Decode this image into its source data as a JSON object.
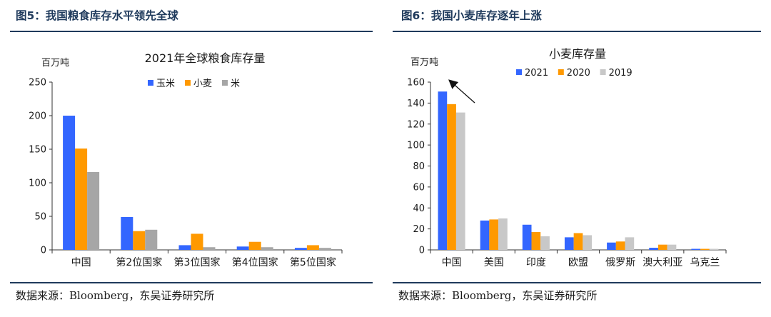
{
  "left": {
    "fig_title": "图5：我国粮食库存水平领先全球",
    "source": "数据来源：Bloomberg，东吴证券研究所",
    "chart_data": {
      "type": "bar",
      "title": "2021年全球粮食库存量",
      "ylabel": "百万吨",
      "ylim": [
        0,
        250
      ],
      "yticks": [
        "0",
        "50",
        "100",
        "150",
        "200",
        "250"
      ],
      "categories": [
        "中国",
        "第2位国家",
        "第3位国家",
        "第4位国家",
        "第5位国家"
      ],
      "series": [
        {
          "name": "玉米",
          "color": "#3366ff",
          "values": [
            200,
            49,
            7,
            5,
            3
          ]
        },
        {
          "name": "小麦",
          "color": "#ff9900",
          "values": [
            151,
            28,
            24,
            12,
            7
          ]
        },
        {
          "name": "米",
          "color": "#a6a6a6",
          "values": [
            116,
            30,
            4,
            4,
            3
          ]
        }
      ],
      "legend_position": "top-center",
      "grid": false
    }
  },
  "right": {
    "fig_title": "图6：我国小麦库存逐年上涨",
    "source": "数据来源：Bloomberg，东吴证券研究所",
    "chart_data": {
      "type": "bar",
      "title": "小麦库存量",
      "ylabel": "百万吨",
      "ylim": [
        0,
        160
      ],
      "yticks": [
        "0",
        "20",
        "40",
        "60",
        "80",
        "100",
        "120",
        "140",
        "160"
      ],
      "categories": [
        "中国",
        "美国",
        "印度",
        "欧盟",
        "俄罗斯",
        "澳大利亚",
        "乌克兰"
      ],
      "series": [
        {
          "name": "2021",
          "color": "#3366ff",
          "values": [
            151,
            28,
            24,
            12,
            7,
            2,
            1
          ]
        },
        {
          "name": "2020",
          "color": "#ff9900",
          "values": [
            139,
            29,
            17,
            16,
            8,
            5,
            1
          ]
        },
        {
          "name": "2019",
          "color": "#c8c8c8",
          "values": [
            131,
            30,
            13,
            14,
            12,
            5,
            1
          ]
        }
      ],
      "legend_position": "top-center",
      "grid": false,
      "annotation": "arrow pointing to China bars"
    }
  }
}
